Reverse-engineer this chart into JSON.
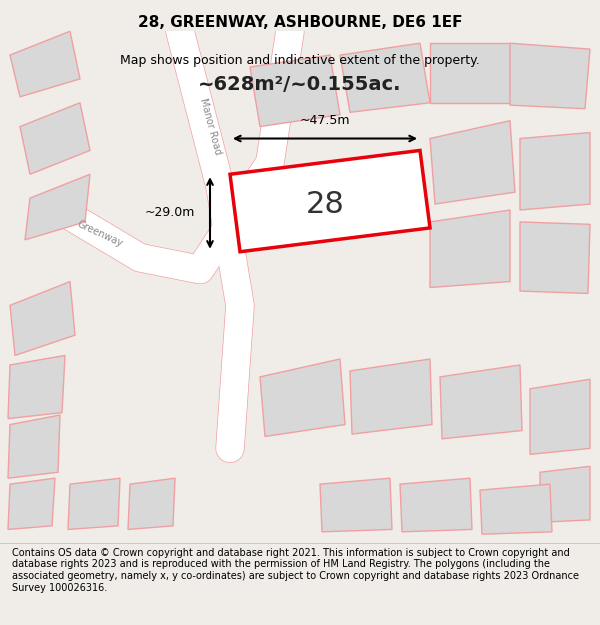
{
  "title": "28, GREENWAY, ASHBOURNE, DE6 1EF",
  "subtitle": "Map shows position and indicative extent of the property.",
  "area_text": "~628m²/~0.155ac.",
  "plot_number": "28",
  "dim_width": "~47.5m",
  "dim_height": "~29.0m",
  "footer": "Contains OS data © Crown copyright and database right 2021. This information is subject to Crown copyright and database rights 2023 and is reproduced with the permission of HM Land Registry. The polygons (including the associated geometry, namely x, y co-ordinates) are subject to Crown copyright and database rights 2023 Ordnance Survey 100026316.",
  "bg_color": "#f0ece8",
  "map_bg": "#f5f2ef",
  "road_color": "#ffffff",
  "building_fill": "#d8d8d8",
  "highlight_fill": "#ffffff",
  "highlight_edge": "#e8000a",
  "other_edge": "#f0a0a0",
  "road_line_color": "#f0a0a0",
  "title_fontsize": 11,
  "subtitle_fontsize": 9,
  "footer_fontsize": 7
}
